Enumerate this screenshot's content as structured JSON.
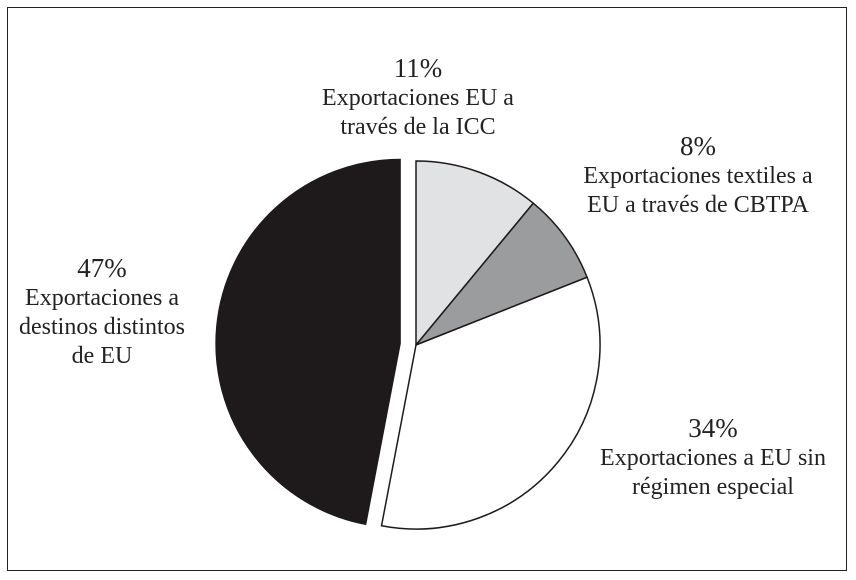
{
  "chart_data": {
    "type": "pie",
    "categories": [
      "Exportaciones EU a través de la ICC",
      "Exportaciones textiles a EU a través de CBTPA",
      "Exportaciones a EU sin régimen especial",
      "Exportaciones a destinos distintos de EU"
    ],
    "values": [
      11,
      8,
      34,
      47
    ],
    "value_labels": [
      "11%",
      "8%",
      "34%",
      "47%"
    ],
    "colors": [
      "#e1e2e4",
      "#9b9c9e",
      "#ffffff",
      "#1e1a1b"
    ],
    "exploded": [
      false,
      false,
      false,
      true
    ]
  }
}
